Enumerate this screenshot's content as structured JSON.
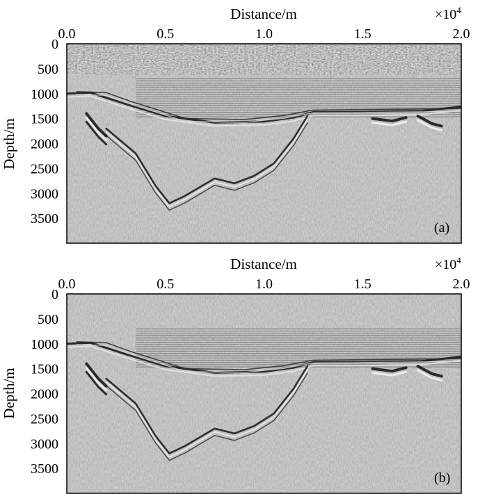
{
  "chart_data": [
    {
      "type": "heatmap",
      "panel_label": "(a)",
      "xlabel": "Distance/m",
      "ylabel": "Depth/m",
      "x_multiplier": "×10",
      "x_multiplier_exponent": "4",
      "xlim": [
        0.0,
        2.0
      ],
      "ylim": [
        0,
        4000
      ],
      "x_ticks": [
        0.0,
        0.5,
        1.0,
        1.5,
        2.0
      ],
      "x_tick_labels": [
        "0.0",
        "0.5",
        "1.0",
        "1.5",
        "2.0"
      ],
      "y_ticks": [
        0,
        500,
        1000,
        1500,
        2000,
        2500,
        3000,
        3500
      ],
      "y_tick_labels": [
        "0",
        "500",
        "1000",
        "1500",
        "2000",
        "2500",
        "3000",
        "3500"
      ],
      "colormap": "grayscale",
      "surface_noise": "strong"
    },
    {
      "type": "heatmap",
      "panel_label": "(b)",
      "xlabel": "Distance/m",
      "ylabel": "Depth/m",
      "x_multiplier": "×10",
      "x_multiplier_exponent": "4",
      "xlim": [
        0.0,
        2.0
      ],
      "ylim": [
        0,
        4000
      ],
      "x_ticks": [
        0.0,
        0.5,
        1.0,
        1.5,
        2.0
      ],
      "x_tick_labels": [
        "0.0",
        "0.5",
        "1.0",
        "1.5",
        "2.0"
      ],
      "y_ticks": [
        0,
        500,
        1000,
        1500,
        2000,
        2500,
        3000,
        3500
      ],
      "y_tick_labels": [
        "0",
        "500",
        "1000",
        "1500",
        "2000",
        "2500",
        "3000",
        "3500"
      ],
      "colormap": "grayscale",
      "surface_noise": "weak"
    }
  ],
  "reflectors": {
    "water_bottom": [
      [
        0.0,
        1000
      ],
      [
        0.12,
        980
      ],
      [
        0.3,
        1210
      ],
      [
        0.5,
        1450
      ],
      [
        0.75,
        1580
      ],
      [
        1.0,
        1560
      ],
      [
        1.15,
        1480
      ],
      [
        1.25,
        1370
      ],
      [
        1.5,
        1370
      ],
      [
        1.8,
        1350
      ],
      [
        2.0,
        1260
      ]
    ],
    "layer_1": [
      [
        0.05,
        960
      ],
      [
        0.2,
        980
      ],
      [
        0.32,
        1150
      ],
      [
        0.6,
        1500
      ],
      [
        0.9,
        1520
      ],
      [
        1.1,
        1440
      ],
      [
        1.25,
        1330
      ],
      [
        2.0,
        1300
      ]
    ],
    "basement": [
      [
        0.2,
        1700
      ],
      [
        0.35,
        2200
      ],
      [
        0.45,
        2850
      ],
      [
        0.52,
        3200
      ],
      [
        0.6,
        3050
      ],
      [
        0.75,
        2700
      ],
      [
        0.85,
        2800
      ],
      [
        0.95,
        2650
      ],
      [
        1.05,
        2400
      ],
      [
        1.15,
        1900
      ],
      [
        1.22,
        1450
      ]
    ],
    "left_dip": [
      [
        0.1,
        1400
      ],
      [
        0.16,
        1700
      ],
      [
        0.2,
        1850
      ]
    ],
    "right_bright_a": [
      [
        1.55,
        1500
      ],
      [
        1.65,
        1550
      ],
      [
        1.72,
        1480
      ]
    ],
    "right_bright_b": [
      [
        1.78,
        1450
      ],
      [
        1.85,
        1600
      ],
      [
        1.9,
        1650
      ]
    ]
  }
}
